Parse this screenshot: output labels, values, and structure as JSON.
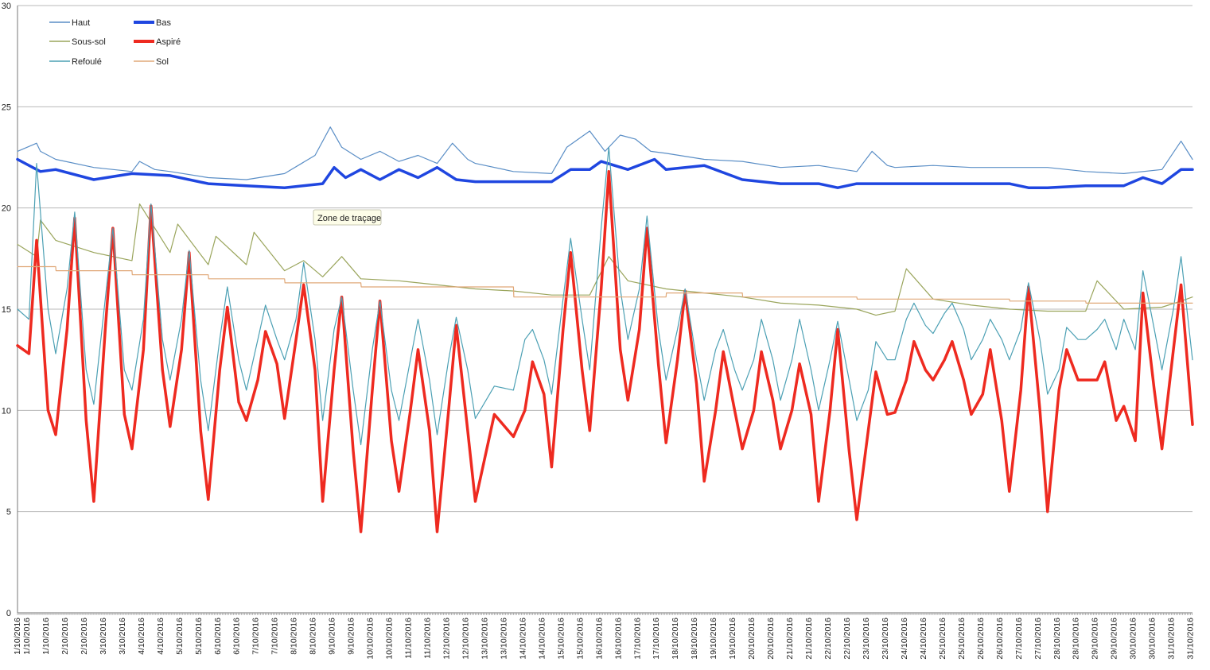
{
  "colors": {
    "Haut": "#5a8ec6",
    "Bas": "#1f46e0",
    "Sous-sol": "#9aa55c",
    "Aspire": "#ee2a20",
    "Refoule": "#4ca0b4",
    "Sol": "#e0a878",
    "grid": "#b8b8b8"
  },
  "tooltip": {
    "label": "Zone de traçage"
  },
  "chart_data": {
    "type": "line",
    "title": "",
    "xlabel": "",
    "ylabel": "",
    "ylim": [
      0,
      30
    ],
    "yticks": [
      0,
      5,
      10,
      15,
      20,
      25,
      30
    ],
    "grid": true,
    "legend_position": "top-left",
    "x_tick_labels": [
      "1/10/2016",
      "1/10/2016",
      "1/10/2016",
      "2/10/2016",
      "2/10/2016",
      "3/10/2016",
      "3/10/2016",
      "4/10/2016",
      "4/10/2016",
      "5/10/2016",
      "5/10/2016",
      "6/10/2016",
      "6/10/2016",
      "7/10/2016",
      "7/10/2016",
      "8/10/2016",
      "8/10/2016",
      "9/10/2016",
      "9/10/2016",
      "10/10/2016",
      "10/10/2016",
      "11/10/2016",
      "11/10/2016",
      "12/10/2016",
      "12/10/2016",
      "13/10/2016",
      "13/10/2016",
      "14/10/2016",
      "14/10/2016",
      "15/10/2016",
      "15/10/2016",
      "16/10/2016",
      "16/10/2016",
      "17/10/2016",
      "17/10/2016",
      "18/10/2016",
      "18/10/2016",
      "19/10/2016",
      "19/10/2016",
      "20/10/2016",
      "20/10/2016",
      "21/10/2016",
      "21/10/2016",
      "22/10/2016",
      "22/10/2016",
      "23/10/2016",
      "23/10/2016",
      "24/10/2016",
      "24/10/2016",
      "25/10/2016",
      "25/10/2016",
      "26/10/2016",
      "26/10/2016",
      "27/10/2016",
      "27/10/2016",
      "28/10/2016",
      "28/10/2016",
      "29/10/2016",
      "29/10/2016",
      "30/10/2016",
      "30/10/2016",
      "31/10/2016",
      "31/10/2016"
    ],
    "x_days": [
      1,
      1.25,
      1.75,
      2.25,
      2.75,
      3.25,
      3.75,
      4.25,
      4.75,
      5.25,
      5.75,
      6.25,
      6.75,
      7.25,
      7.75,
      8.25,
      8.75,
      9.25,
      9.75,
      10.25,
      10.75,
      11.25,
      11.75,
      12.25,
      12.75,
      13.25,
      13.75,
      14.25,
      14.75,
      15.25,
      15.75,
      16.25,
      16.75,
      17.25,
      17.75,
      18.25,
      18.75,
      19.25,
      19.75,
      20.25,
      20.75,
      21.25,
      21.75,
      22.25,
      22.75,
      23.25,
      23.75,
      24.25,
      24.75,
      25.25,
      25.75,
      26.25,
      26.75,
      27.25,
      27.75,
      28.25,
      28.75,
      29.25,
      29.75,
      30.25,
      30.75,
      31.25,
      31.75
    ],
    "series": [
      {
        "name": "Haut",
        "key": "Haut",
        "width": 1.2,
        "x": [
          1,
          1.5,
          1.6,
          2,
          3,
          4,
          4.2,
          4.6,
          5,
          6,
          7,
          8,
          8.8,
          9.2,
          9.5,
          10,
          10.5,
          11,
          11.5,
          12,
          12.4,
          12.8,
          13,
          14,
          15,
          15.4,
          16,
          16.4,
          16.8,
          17.2,
          17.6,
          18,
          19,
          20,
          21,
          22,
          23,
          23.4,
          23.8,
          24,
          25,
          26,
          27,
          28,
          29,
          30,
          31,
          31.5,
          31.8
        ],
        "y": [
          22.8,
          23.2,
          22.8,
          22.4,
          22,
          21.8,
          22.3,
          21.9,
          21.8,
          21.5,
          21.4,
          21.7,
          22.6,
          24,
          23,
          22.4,
          22.8,
          22.3,
          22.6,
          22.2,
          23.2,
          22.4,
          22.2,
          21.8,
          21.7,
          23,
          23.8,
          22.8,
          23.6,
          23.4,
          22.8,
          22.7,
          22.4,
          22.3,
          22,
          22.1,
          21.8,
          22.8,
          22.1,
          22,
          22.1,
          22,
          22,
          22,
          21.8,
          21.7,
          21.9,
          23.3,
          22.4
        ]
      },
      {
        "name": "Bas",
        "key": "Bas",
        "width": 3.5,
        "x": [
          1,
          1.6,
          2,
          3,
          4,
          5,
          6,
          7,
          8,
          9,
          9.3,
          9.6,
          10,
          10.5,
          11,
          11.5,
          12,
          12.5,
          13,
          14,
          15,
          15.5,
          16,
          16.3,
          17,
          17.7,
          18,
          19,
          20,
          21,
          22,
          22.5,
          23,
          24,
          25,
          26,
          27,
          27.5,
          28,
          29,
          30,
          30.5,
          31,
          31.5,
          31.8
        ],
        "y": [
          22.4,
          21.8,
          21.9,
          21.4,
          21.7,
          21.6,
          21.2,
          21.1,
          21,
          21.2,
          22,
          21.5,
          21.9,
          21.4,
          21.9,
          21.5,
          22,
          21.4,
          21.3,
          21.3,
          21.3,
          21.9,
          21.9,
          22.3,
          21.9,
          22.4,
          21.9,
          22.1,
          21.4,
          21.2,
          21.2,
          21,
          21.2,
          21.2,
          21.2,
          21.2,
          21.2,
          21,
          21,
          21.1,
          21.1,
          21.5,
          21.2,
          21.9,
          21.9
        ]
      },
      {
        "name": "Sous-sol",
        "key": "Sous-sol",
        "width": 1.2,
        "x": [
          1,
          1.5,
          1.6,
          2,
          3,
          4,
          4.2,
          5,
          5.2,
          6,
          6.2,
          7,
          7.2,
          8,
          8.5,
          9,
          9.5,
          10,
          11,
          12,
          13,
          14,
          15,
          16,
          16.5,
          17,
          18,
          19,
          20,
          21,
          22,
          23,
          23.5,
          24,
          24.3,
          25,
          26,
          27,
          28,
          29,
          29.3,
          30,
          31,
          31.5,
          31.8
        ],
        "y": [
          18.2,
          17.6,
          19.4,
          18.4,
          17.8,
          17.4,
          20.2,
          17.8,
          19.2,
          17.2,
          18.6,
          17.2,
          18.8,
          16.9,
          17.4,
          16.6,
          17.6,
          16.5,
          16.4,
          16.2,
          16,
          15.9,
          15.7,
          15.7,
          17.6,
          16.4,
          16,
          15.8,
          15.6,
          15.3,
          15.2,
          15,
          14.7,
          14.9,
          17,
          15.5,
          15.2,
          15,
          14.9,
          14.9,
          16.4,
          15,
          15.1,
          15.4,
          15.6
        ]
      },
      {
        "name": "Aspiré",
        "key": "Aspire",
        "width": 3.5,
        "x": [
          1,
          1.3,
          1.5,
          1.8,
          2,
          2.3,
          2.5,
          2.8,
          3,
          3.3,
          3.5,
          3.8,
          4,
          4.3,
          4.5,
          4.8,
          5,
          5.3,
          5.5,
          5.8,
          6,
          6.3,
          6.5,
          6.8,
          7,
          7.3,
          7.5,
          7.8,
          8,
          8.3,
          8.5,
          8.8,
          9,
          9.3,
          9.5,
          9.8,
          10,
          10.3,
          10.5,
          10.8,
          11,
          11.3,
          11.5,
          11.8,
          12,
          12.3,
          12.5,
          12.8,
          13,
          13.5,
          14,
          14.3,
          14.5,
          14.8,
          15,
          15.3,
          15.5,
          15.8,
          16,
          16.3,
          16.5,
          16.8,
          17,
          17.3,
          17.5,
          17.8,
          18,
          18.3,
          18.5,
          18.8,
          19,
          19.3,
          19.5,
          19.8,
          20,
          20.3,
          20.5,
          20.8,
          21,
          21.3,
          21.5,
          21.8,
          22,
          22.3,
          22.5,
          22.8,
          23,
          23.3,
          23.5,
          23.8,
          24,
          24.3,
          24.5,
          24.8,
          25,
          25.3,
          25.5,
          25.8,
          26,
          26.3,
          26.5,
          26.8,
          27,
          27.3,
          27.5,
          27.8,
          28,
          28.3,
          28.5,
          28.8,
          29,
          29.3,
          29.5,
          29.8,
          30,
          30.3,
          30.5,
          30.8,
          31,
          31.3,
          31.5,
          31.8
        ],
        "y": [
          13.2,
          12.8,
          18.4,
          10,
          8.8,
          14,
          19.5,
          9.5,
          5.5,
          14,
          19,
          9.8,
          8.1,
          13,
          20.1,
          12,
          9.2,
          13,
          17.8,
          9,
          5.6,
          12,
          15.1,
          10.4,
          9.5,
          11.5,
          13.9,
          12.3,
          9.6,
          13.5,
          16.2,
          12,
          5.5,
          12,
          15.6,
          8,
          4,
          11,
          15.4,
          8.5,
          6,
          10,
          13,
          9,
          4,
          10,
          14.2,
          9,
          5.5,
          9.8,
          8.7,
          10,
          12.4,
          10.8,
          7.2,
          14,
          17.8,
          12,
          9,
          16,
          21.8,
          13,
          10.5,
          14,
          19,
          12.3,
          8.4,
          12.5,
          15.9,
          11.3,
          6.5,
          10,
          12.9,
          10,
          8.1,
          10,
          12.9,
          10.5,
          8.1,
          10,
          12.3,
          9.8,
          5.5,
          10,
          14,
          8,
          4.6,
          9,
          11.9,
          9.8,
          9.9,
          11.5,
          13.4,
          12,
          11.5,
          12.5,
          13.4,
          11.5,
          9.8,
          10.8,
          13,
          9.5,
          6,
          11,
          16.1,
          10,
          5,
          11,
          13,
          11.5,
          11.5,
          11.5,
          12.4,
          9.5,
          10.2,
          8.5,
          15.8,
          11,
          8.1,
          13,
          16.2,
          9.3
        ]
      },
      {
        "name": "Refoulé",
        "key": "Refoule",
        "width": 1.2,
        "x": [
          1,
          1.3,
          1.5,
          1.8,
          2,
          2.3,
          2.5,
          2.8,
          3,
          3.3,
          3.5,
          3.8,
          4,
          4.3,
          4.5,
          4.8,
          5,
          5.3,
          5.5,
          5.8,
          6,
          6.3,
          6.5,
          6.8,
          7,
          7.3,
          7.5,
          7.8,
          8,
          8.3,
          8.5,
          8.8,
          9,
          9.3,
          9.5,
          9.8,
          10,
          10.3,
          10.5,
          10.8,
          11,
          11.3,
          11.5,
          11.8,
          12,
          12.3,
          12.5,
          12.8,
          13,
          13.5,
          14,
          14.3,
          14.5,
          14.8,
          15,
          15.3,
          15.5,
          15.8,
          16,
          16.3,
          16.5,
          16.8,
          17,
          17.3,
          17.5,
          17.8,
          18,
          18.3,
          18.5,
          18.8,
          19,
          19.3,
          19.5,
          19.8,
          20,
          20.3,
          20.5,
          20.8,
          21,
          21.3,
          21.5,
          21.8,
          22,
          22.3,
          22.5,
          22.8,
          23,
          23.3,
          23.5,
          23.8,
          24,
          24.3,
          24.5,
          24.8,
          25,
          25.3,
          25.5,
          25.8,
          26,
          26.3,
          26.5,
          26.8,
          27,
          27.3,
          27.5,
          27.8,
          28,
          28.3,
          28.5,
          28.8,
          29,
          29.3,
          29.5,
          29.8,
          30,
          30.3,
          30.5,
          30.8,
          31,
          31.3,
          31.5,
          31.8
        ],
        "y": [
          15,
          14.5,
          22.2,
          15,
          12.8,
          16,
          19.8,
          12,
          10.3,
          15.5,
          19,
          12,
          11,
          14.5,
          20.2,
          13.5,
          11.5,
          14.5,
          17.9,
          11.5,
          9,
          13.5,
          16.1,
          12.5,
          11,
          13.5,
          15.2,
          13.5,
          12.5,
          14.5,
          17.3,
          13.5,
          9.5,
          14,
          15.6,
          11,
          8.3,
          13,
          15.4,
          11,
          9.5,
          12.5,
          14.5,
          11.5,
          8.8,
          12.5,
          14.6,
          12,
          9.6,
          11.2,
          11,
          13.5,
          14,
          12.5,
          10.8,
          15.5,
          18.5,
          14.5,
          12,
          19,
          23,
          16,
          13.5,
          16,
          19.6,
          14,
          11.5,
          14,
          16,
          12.5,
          10.5,
          13,
          14,
          12,
          11,
          12.5,
          14.5,
          12.5,
          10.5,
          12.5,
          14.5,
          12,
          10,
          12.5,
          14.4,
          11.5,
          9.5,
          11,
          13.4,
          12.5,
          12.5,
          14.5,
          15.3,
          14.2,
          13.8,
          14.8,
          15.3,
          14,
          12.5,
          13.5,
          14.5,
          13.5,
          12.5,
          14,
          16.3,
          13.5,
          10.8,
          12,
          14.1,
          13.5,
          13.5,
          14,
          14.5,
          13,
          14.5,
          13,
          16.9,
          14,
          12,
          15,
          17.6,
          12.5
        ]
      },
      {
        "name": "Sol",
        "key": "Sol",
        "width": 1.2,
        "x": [
          1,
          2,
          2.01,
          4,
          4.01,
          6,
          6.01,
          8,
          8.01,
          10,
          10.01,
          14,
          14.01,
          18,
          18.01,
          20,
          20.01,
          23,
          23.01,
          27,
          27.01,
          29,
          29.01,
          31.8
        ],
        "y": [
          17.1,
          17.1,
          16.9,
          16.9,
          16.7,
          16.7,
          16.5,
          16.5,
          16.3,
          16.3,
          16.1,
          16.1,
          15.6,
          15.6,
          15.8,
          15.8,
          15.6,
          15.6,
          15.5,
          15.5,
          15.4,
          15.4,
          15.3,
          15.3
        ]
      }
    ]
  }
}
